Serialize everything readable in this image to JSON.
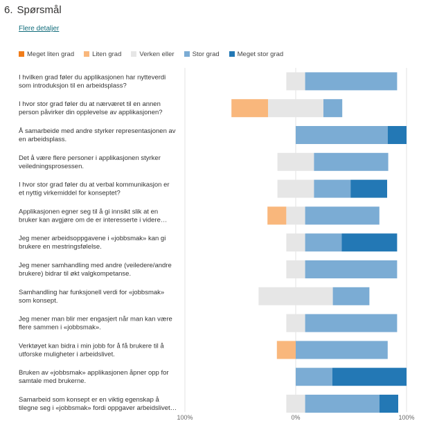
{
  "question": {
    "number": "6.",
    "title": "Spørsmål",
    "details_link": "Flere detaljer"
  },
  "chart_data": {
    "type": "bar",
    "stacked": "diverging",
    "legend_position": "top-left",
    "series": [
      {
        "name": "Meget liten grad",
        "color": "#f07c1a"
      },
      {
        "name": "Liten grad",
        "color": "#f9b77c"
      },
      {
        "name": "Verken eller",
        "color": "#e6e6e6"
      },
      {
        "name": "Stor grad",
        "color": "#7bacd4"
      },
      {
        "name": "Meget stor grad",
        "color": "#2378b5"
      }
    ],
    "xlim": [
      -100,
      100
    ],
    "x_ticks": [
      "100%",
      "0%",
      "100%"
    ],
    "rows": [
      {
        "label": [
          "I hvilken grad føler du applikasjonen har nytteverdi",
          "som introduksjon til en arbeidsplass?"
        ],
        "values": [
          0,
          0,
          17,
          83,
          0
        ]
      },
      {
        "label": [
          "I hvor stor grad føler du at nærværet til en annen",
          "person påvirker din opplevelse av applikasjonen?"
        ],
        "values": [
          0,
          33,
          50,
          17,
          0
        ]
      },
      {
        "label": [
          "Å samarbeide med andre styrker representasjonen av",
          "en arbeidsplass."
        ],
        "values": [
          0,
          0,
          0,
          83,
          17
        ]
      },
      {
        "label": [
          "Det å være flere personer i applikasjonen styrker",
          "veiledningsprosessen."
        ],
        "values": [
          0,
          0,
          33,
          67,
          0
        ]
      },
      {
        "label": [
          "I hvor stor grad føler du at verbal kommunikasjon er",
          "et nyttig virkemiddel for konseptet?"
        ],
        "values": [
          0,
          0,
          33,
          33,
          33
        ]
      },
      {
        "label": [
          "Applikasjonen egner seg til å gi innsikt slik at en",
          "bruker kan avgjøre om de er interesserte i videre…"
        ],
        "values": [
          0,
          17,
          17,
          67,
          0
        ]
      },
      {
        "label": [
          "Jeg mener arbeidsoppgavene i «jobbsmak» kan gi",
          "brukere en mestringsfølelse."
        ],
        "values": [
          0,
          0,
          17,
          33,
          50
        ]
      },
      {
        "label": [
          "Jeg mener samhandling med andre (veiledere/andre",
          "brukere) bidrar til økt valgkompetanse."
        ],
        "values": [
          0,
          0,
          17,
          83,
          0
        ]
      },
      {
        "label": [
          "Samhandling har funksjonell verdi for «jobbsmak»",
          "som konsept."
        ],
        "values": [
          0,
          0,
          67,
          33,
          0
        ]
      },
      {
        "label": [
          "Jeg mener man blir mer engasjert når man kan være",
          "flere sammen i «jobbsmak»."
        ],
        "values": [
          0,
          0,
          17,
          83,
          0
        ]
      },
      {
        "label": [
          "Verktøyet kan bidra i min jobb for å få brukere til å",
          "utforske muligheter i arbeidslivet."
        ],
        "values": [
          0,
          17,
          0,
          83,
          0
        ]
      },
      {
        "label": [
          "Bruken av «jobbsmak» applikasjonen åpner opp for",
          "samtale med brukerne."
        ],
        "values": [
          0,
          0,
          0,
          33,
          67
        ]
      },
      {
        "label": [
          "Samarbeid som konsept er en viktig egenskap å",
          "tilegne seg i «jobbsmak» fordi oppgaver arbeidslivet…"
        ],
        "values": [
          0,
          0,
          17,
          67,
          17
        ]
      }
    ]
  }
}
